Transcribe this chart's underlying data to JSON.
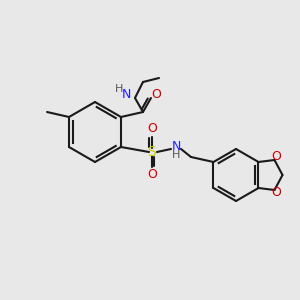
{
  "background_color": "#e8e8e8",
  "bond_color": "#1a1a1a",
  "bond_lw": 1.5,
  "atom_colors": {
    "N": "#2020ff",
    "O": "#cc0000",
    "S": "#cccc00",
    "H": "#555555",
    "C": "#1a1a1a"
  },
  "font_size": 8,
  "figsize": [
    3.0,
    3.0
  ],
  "dpi": 100
}
